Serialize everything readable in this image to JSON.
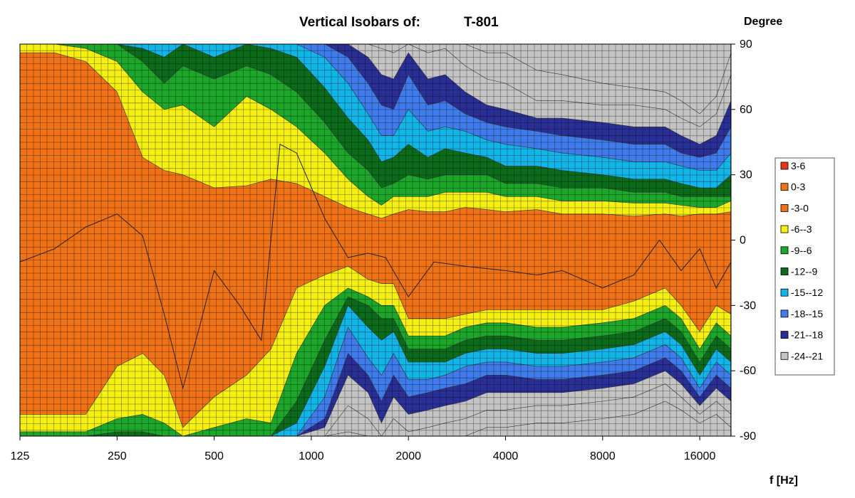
{
  "chart_data": {
    "type": "contour",
    "title_prefix": "Vertical Isobars of:",
    "title_name": "T-801",
    "xlabel": "f [Hz]",
    "ylabel": "Degree",
    "x_scale": "log2",
    "xlim": [
      125,
      20000
    ],
    "ylim": [
      -90,
      90
    ],
    "x_ticks": [
      125,
      250,
      500,
      1000,
      2000,
      4000,
      8000,
      16000
    ],
    "x_tick_labels": [
      "125",
      "250",
      "500",
      "1000",
      "2000",
      "4000",
      "8000",
      "16000"
    ],
    "y_ticks": [
      90,
      60,
      30,
      0,
      -30,
      -60,
      -90
    ],
    "y_tick_labels": [
      "90",
      "60",
      "30",
      "0",
      "-30",
      "-60",
      "-90"
    ],
    "grid": true,
    "legend_position": "right",
    "levels": [
      {
        "label": "3-6",
        "color": "#e8361c"
      },
      {
        "label": "0-3",
        "color": "#f07216"
      },
      {
        "label": "-3-0",
        "color": "#f07216"
      },
      {
        "label": "-6--3",
        "color": "#f5f011"
      },
      {
        "label": "-9--6",
        "color": "#1ca62a"
      },
      {
        "label": "-12--9",
        "color": "#0b6b1b"
      },
      {
        "label": "-15--12",
        "color": "#12b5e8"
      },
      {
        "label": "-18--15",
        "color": "#3f7bea"
      },
      {
        "label": "-21--18",
        "color": "#2a2f95"
      },
      {
        "label": "-24--21",
        "color": "#c4c4c4"
      }
    ],
    "iso_bands_upper": {
      "freqs": [
        125,
        160,
        200,
        250,
        300,
        350,
        400,
        500,
        630,
        750,
        900,
        1100,
        1300,
        1500,
        1650,
        1800,
        2000,
        2300,
        2600,
        3000,
        3500,
        4000,
        5000,
        6000,
        8000,
        10000,
        12500,
        14000,
        16000,
        18000,
        20000
      ],
      "boundaries_deg": [
        [
          86,
          86,
          82,
          68,
          38,
          32,
          30,
          24,
          25,
          28,
          26,
          20,
          15,
          12,
          10,
          12,
          14,
          13,
          13,
          15,
          14,
          13,
          14,
          12,
          12,
          11,
          12,
          11,
          12,
          12,
          13
        ],
        [
          90,
          90,
          88,
          82,
          68,
          60,
          62,
          52,
          66,
          60,
          52,
          40,
          28,
          20,
          16,
          20,
          20,
          20,
          22,
          22,
          22,
          20,
          20,
          18,
          18,
          17,
          17,
          16,
          15,
          15,
          18
        ],
        [
          90,
          90,
          90,
          90,
          82,
          72,
          80,
          74,
          80,
          76,
          68,
          54,
          40,
          32,
          24,
          26,
          30,
          28,
          30,
          30,
          30,
          26,
          26,
          24,
          24,
          22,
          22,
          20,
          20,
          20,
          20
        ],
        [
          90,
          90,
          90,
          90,
          88,
          84,
          90,
          84,
          90,
          88,
          84,
          70,
          56,
          46,
          36,
          38,
          44,
          38,
          42,
          40,
          38,
          34,
          34,
          32,
          30,
          28,
          28,
          26,
          24,
          24,
          30
        ],
        [
          90,
          90,
          90,
          90,
          90,
          90,
          90,
          90,
          90,
          90,
          90,
          84,
          72,
          58,
          48,
          48,
          60,
          50,
          52,
          50,
          46,
          44,
          42,
          40,
          38,
          36,
          36,
          34,
          32,
          32,
          40
        ],
        [
          90,
          90,
          90,
          90,
          90,
          90,
          90,
          90,
          90,
          90,
          90,
          90,
          84,
          72,
          62,
          60,
          76,
          62,
          64,
          58,
          54,
          52,
          50,
          48,
          46,
          44,
          44,
          40,
          38,
          40,
          52
        ],
        [
          90,
          90,
          90,
          90,
          90,
          90,
          90,
          90,
          90,
          90,
          90,
          90,
          90,
          84,
          76,
          74,
          86,
          74,
          76,
          68,
          62,
          60,
          56,
          56,
          54,
          52,
          52,
          48,
          44,
          48,
          64
        ],
        [
          90,
          90,
          90,
          90,
          90,
          90,
          90,
          90,
          90,
          90,
          90,
          90,
          90,
          90,
          88,
          86,
          90,
          86,
          88,
          80,
          74,
          72,
          64,
          64,
          62,
          62,
          60,
          56,
          52,
          58,
          76
        ],
        [
          90,
          90,
          90,
          90,
          90,
          90,
          90,
          90,
          90,
          90,
          90,
          90,
          90,
          90,
          90,
          90,
          90,
          90,
          90,
          90,
          86,
          86,
          78,
          76,
          72,
          70,
          68,
          64,
          58,
          66,
          86
        ]
      ]
    },
    "iso_bands_lower": {
      "freqs": [
        125,
        160,
        200,
        250,
        300,
        350,
        400,
        500,
        630,
        750,
        900,
        1100,
        1300,
        1500,
        1650,
        1800,
        2000,
        2300,
        2600,
        3000,
        3500,
        4000,
        5000,
        6000,
        8000,
        10000,
        12500,
        14000,
        16000,
        18000,
        20000
      ],
      "boundaries_deg": [
        [
          -80,
          -80,
          -80,
          -58,
          -52,
          -62,
          -86,
          -72,
          -62,
          -50,
          -22,
          -16,
          -12,
          -18,
          -20,
          -20,
          -36,
          -36,
          -36,
          -34,
          -32,
          -32,
          -32,
          -32,
          -32,
          -28,
          -22,
          -30,
          -42,
          -30,
          -34
        ],
        [
          -88,
          -88,
          -88,
          -82,
          -80,
          -84,
          -90,
          -86,
          -82,
          -84,
          -52,
          -30,
          -22,
          -26,
          -30,
          -30,
          -44,
          -44,
          -44,
          -40,
          -38,
          -38,
          -40,
          -40,
          -38,
          -36,
          -30,
          -36,
          -50,
          -38,
          -44
        ],
        [
          -90,
          -90,
          -90,
          -88,
          -88,
          -90,
          -90,
          -90,
          -90,
          -90,
          -74,
          -46,
          -26,
          -30,
          -36,
          -36,
          -50,
          -50,
          -50,
          -46,
          -44,
          -44,
          -46,
          -46,
          -44,
          -42,
          -36,
          -42,
          -56,
          -44,
          -50
        ],
        [
          -90,
          -90,
          -90,
          -90,
          -90,
          -90,
          -90,
          -90,
          -90,
          -90,
          -84,
          -58,
          -30,
          -40,
          -46,
          -42,
          -56,
          -56,
          -56,
          -52,
          -50,
          -50,
          -52,
          -52,
          -50,
          -48,
          -42,
          -48,
          -62,
          -50,
          -56
        ],
        [
          -90,
          -90,
          -90,
          -90,
          -90,
          -90,
          -90,
          -90,
          -90,
          -90,
          -90,
          -72,
          -40,
          -54,
          -62,
          -52,
          -64,
          -64,
          -62,
          -58,
          -56,
          -56,
          -58,
          -58,
          -56,
          -54,
          -48,
          -54,
          -68,
          -56,
          -62
        ],
        [
          -90,
          -90,
          -90,
          -90,
          -90,
          -90,
          -90,
          -90,
          -90,
          -90,
          -90,
          -82,
          -52,
          -62,
          -74,
          -62,
          -72,
          -70,
          -68,
          -66,
          -62,
          -62,
          -64,
          -64,
          -62,
          -60,
          -54,
          -60,
          -72,
          -62,
          -68
        ],
        [
          -90,
          -90,
          -90,
          -90,
          -90,
          -90,
          -90,
          -90,
          -90,
          -90,
          -90,
          -86,
          -62,
          -70,
          -84,
          -72,
          -80,
          -78,
          -76,
          -74,
          -70,
          -70,
          -70,
          -70,
          -68,
          -66,
          -60,
          -66,
          -76,
          -68,
          -74
        ],
        [
          -90,
          -90,
          -90,
          -90,
          -90,
          -90,
          -90,
          -90,
          -90,
          -90,
          -90,
          -90,
          -76,
          -82,
          -90,
          -82,
          -88,
          -86,
          -84,
          -82,
          -78,
          -78,
          -76,
          -76,
          -74,
          -72,
          -66,
          -72,
          -80,
          -74,
          -80
        ],
        [
          -90,
          -90,
          -90,
          -90,
          -90,
          -90,
          -90,
          -90,
          -90,
          -90,
          -90,
          -90,
          -88,
          -90,
          -90,
          -90,
          -90,
          -90,
          -90,
          -90,
          -86,
          -86,
          -84,
          -84,
          -82,
          -80,
          -74,
          -78,
          -84,
          -80,
          -86
        ]
      ]
    },
    "center_line": {
      "freqs": [
        125,
        160,
        200,
        250,
        300,
        350,
        400,
        450,
        500,
        600,
        700,
        800,
        900,
        1100,
        1300,
        1500,
        1700,
        2000,
        2400,
        3000,
        4000,
        5000,
        6000,
        8000,
        10000,
        12000,
        14000,
        16000,
        18000,
        20000
      ],
      "deg": [
        -10,
        -4,
        6,
        12,
        2,
        -34,
        -68,
        -40,
        -14,
        -30,
        -46,
        44,
        40,
        10,
        -8,
        -6,
        -8,
        -26,
        -10,
        -12,
        -14,
        -16,
        -14,
        -22,
        -16,
        0,
        -14,
        -4,
        -22,
        -10
      ]
    }
  }
}
